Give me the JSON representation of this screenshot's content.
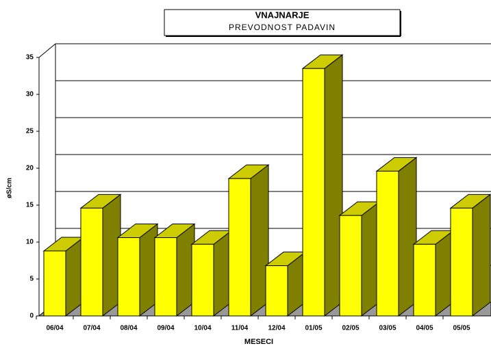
{
  "chart_data": {
    "type": "bar3d",
    "title": "VNAJNARJE",
    "subtitle": "PREVODNOST PADAVIN",
    "y_label": "øS/cm",
    "x_label": "MESECI",
    "categories": [
      "06/04",
      "07/04",
      "08/04",
      "09/04",
      "10/04",
      "11/04",
      "12/04",
      "01/05",
      "02/05",
      "03/05",
      "04/05",
      "05/05"
    ],
    "values": [
      8.8,
      14.6,
      10.6,
      10.6,
      9.7,
      18.6,
      6.8,
      33.5,
      13.6,
      19.6,
      9.7,
      14.6
    ],
    "color": "#ffff00",
    "top_color": "#cccc00",
    "side_color": "#808000",
    "ylim": [
      0,
      35
    ],
    "yticks": [
      0,
      5,
      10,
      15,
      20,
      25,
      30,
      35
    ],
    "grid": true
  }
}
